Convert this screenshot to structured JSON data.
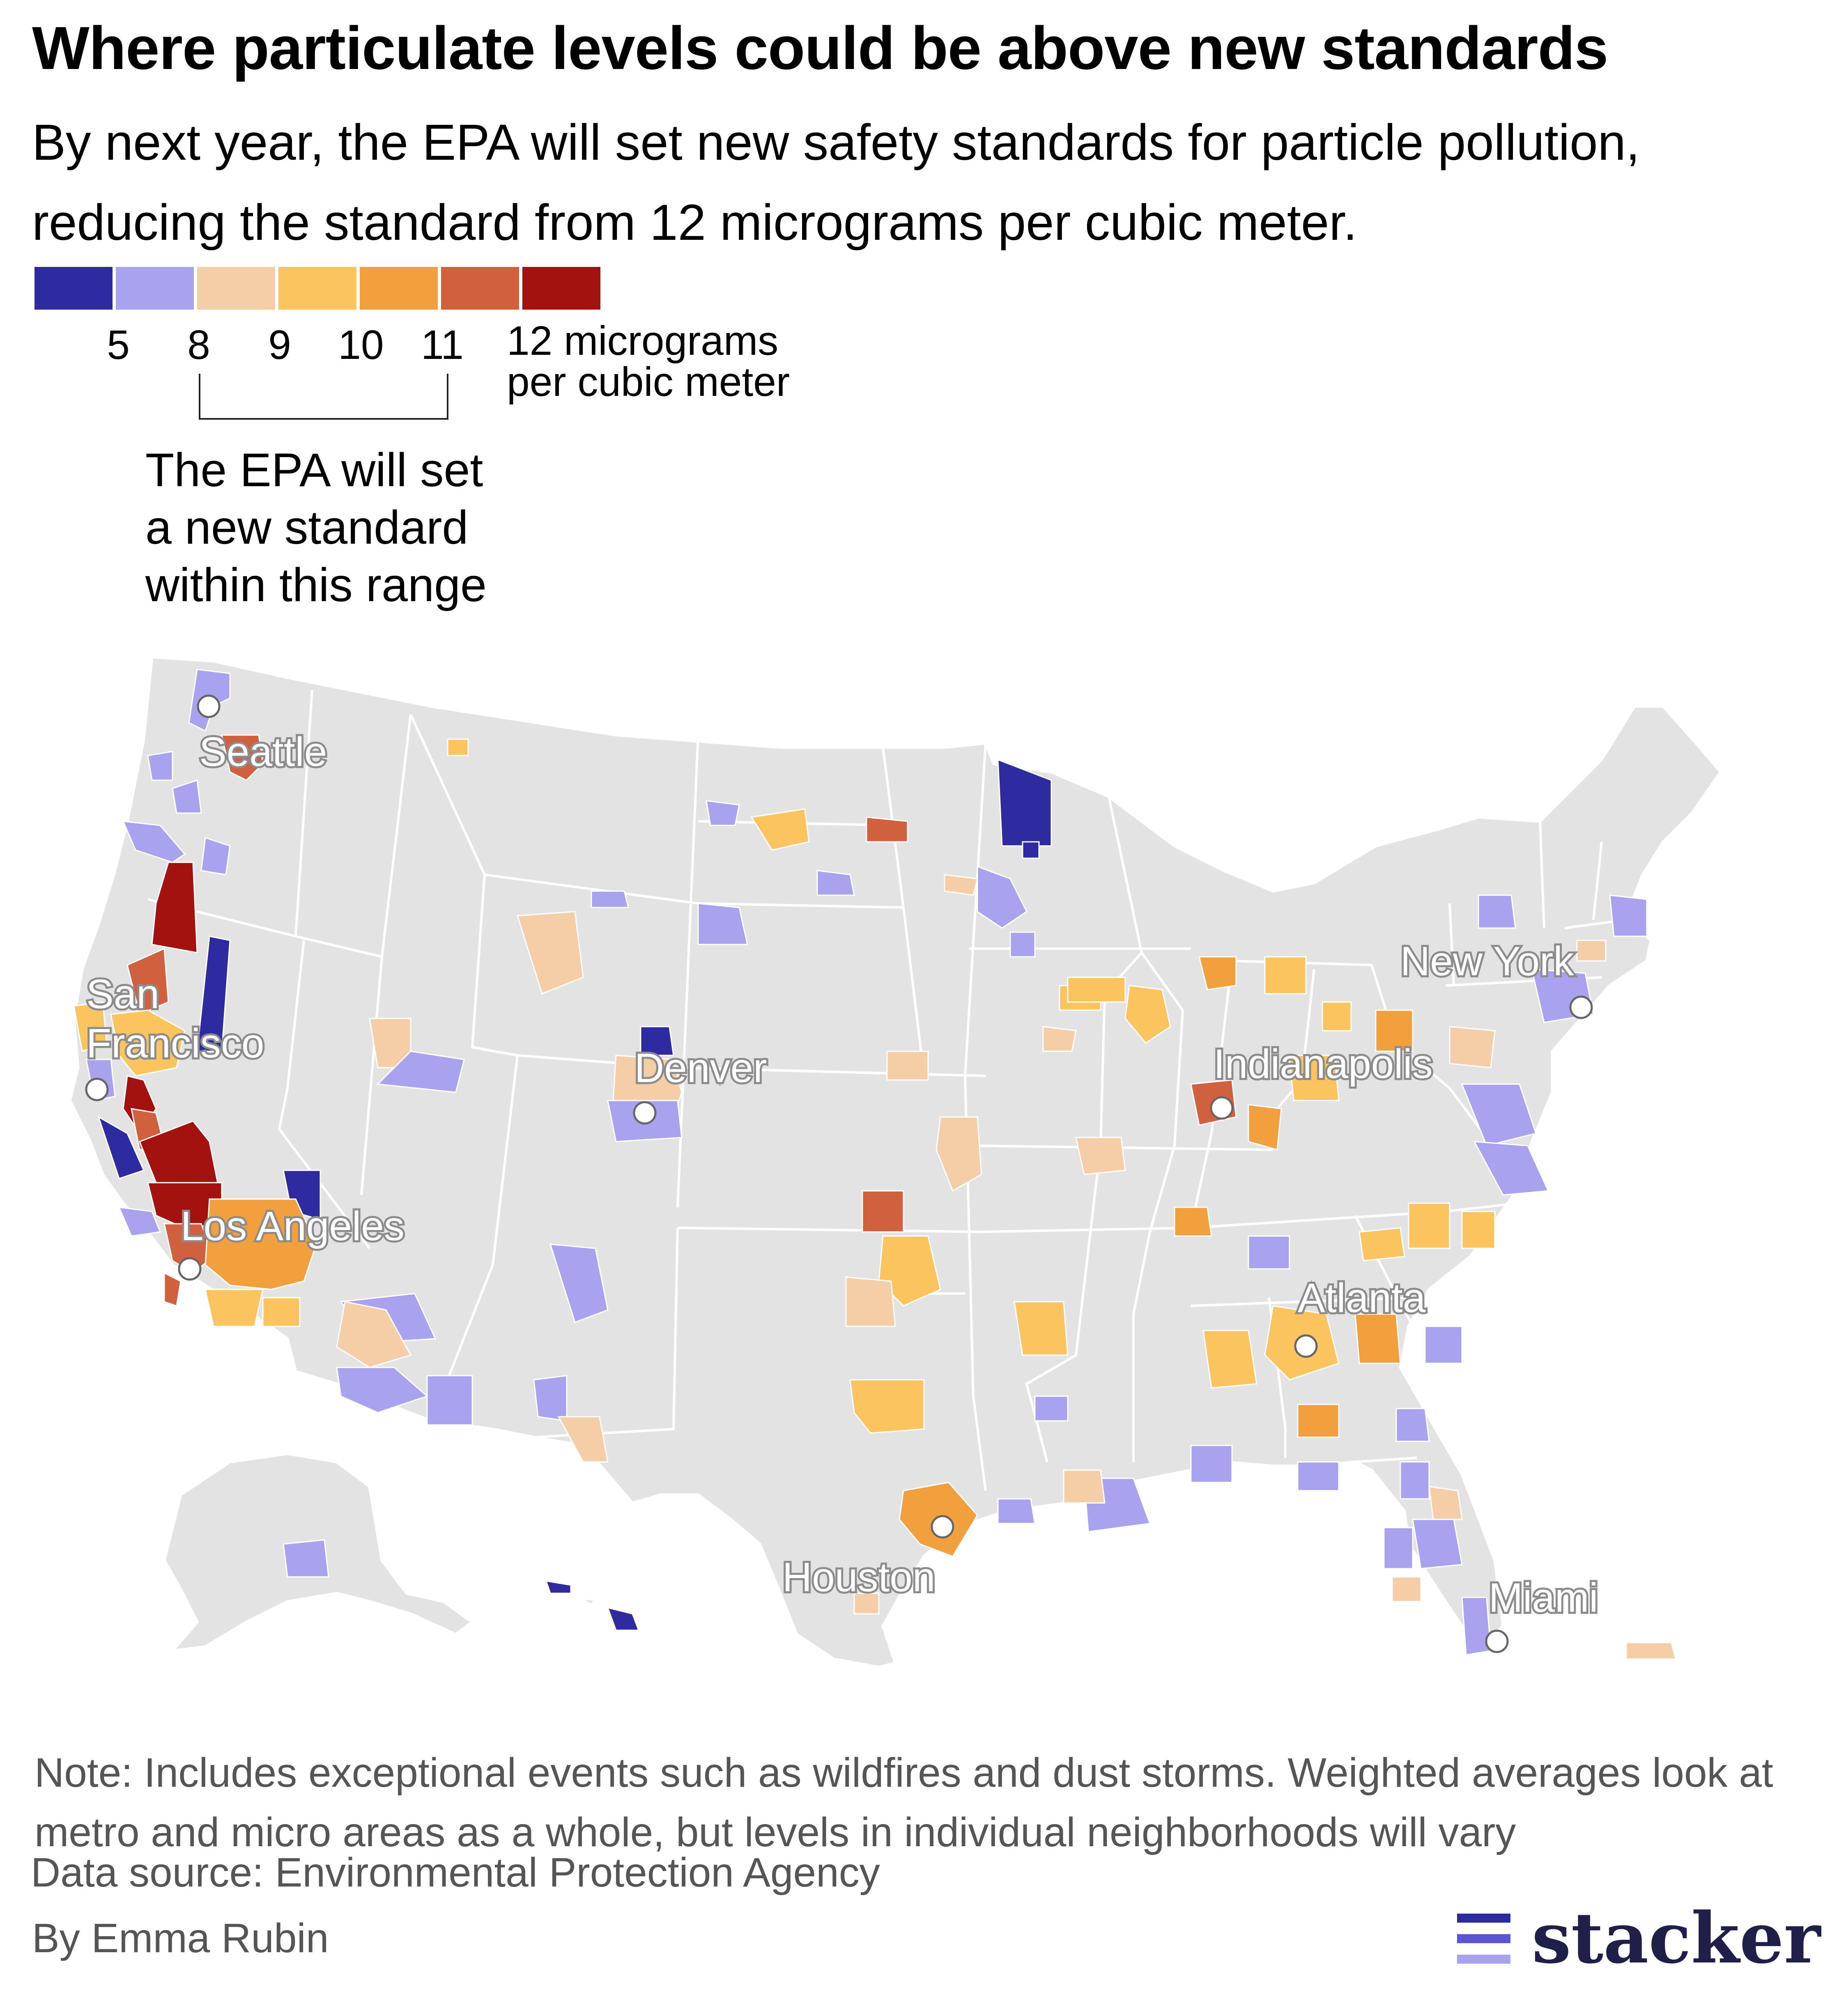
{
  "title": "Where particulate levels could be above new standards",
  "subtitle": "By next year, the EPA will set new safety standards for particle pollution, reducing the standard from 12 micrograms per cubic meter.",
  "legend": {
    "swatches": [
      {
        "color": "#2e2a9f"
      },
      {
        "color": "#a9a2ee"
      },
      {
        "color": "#f5cda6"
      },
      {
        "color": "#fbc45f"
      },
      {
        "color": "#f2a03e"
      },
      {
        "color": "#d1603e"
      },
      {
        "color": "#a3120e"
      }
    ],
    "ticks": [
      "5",
      "8",
      "9",
      "10",
      "11"
    ],
    "unit_line1": "12 micrograms",
    "unit_line2": "per cubic meter",
    "bracket_note_line1": "The EPA will set",
    "bracket_note_line2": "a new standard",
    "bracket_note_line3": "within this range"
  },
  "map": {
    "land_color": "#e3e3e3",
    "border_color": "#ffffff",
    "cities": [
      {
        "name": "Seattle"
      },
      {
        "name": "San Francisco"
      },
      {
        "name": "Los Angeles"
      },
      {
        "name": "Denver"
      },
      {
        "name": "Houston"
      },
      {
        "name": "Indianapolis"
      },
      {
        "name": "Atlanta"
      },
      {
        "name": "New York"
      },
      {
        "name": "Miami"
      }
    ],
    "san_francisco_line1": "San",
    "san_francisco_line2": "Francisco"
  },
  "note": "Note: Includes exceptional events such as wildfires and dust storms. Weighted averages look at metro and micro areas as a whole, but levels in individual neighborhoods will vary",
  "source": "Data source: Environmental Protection Agency",
  "byline": "By Emma Rubin",
  "brand": "stacker"
}
